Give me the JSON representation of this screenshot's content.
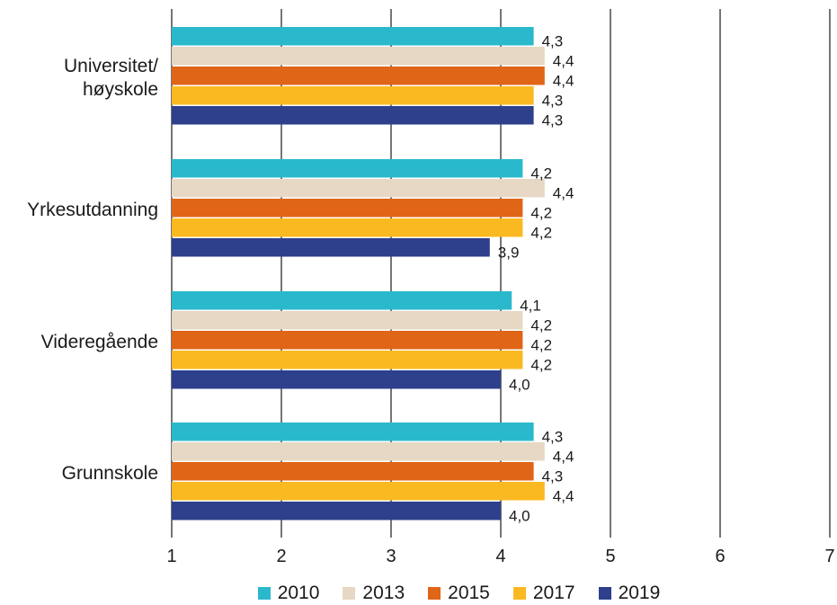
{
  "chart_data": {
    "type": "bar",
    "orientation": "horizontal",
    "categories": [
      "Universitet/\nhøyskole",
      "Yrkesutdanning",
      "Videregående",
      "Grunnskole"
    ],
    "series": [
      {
        "name": "2010",
        "color": "#2ab9cc",
        "values": [
          4.3,
          4.2,
          4.1,
          4.3
        ],
        "labels": [
          "4,3",
          "4,2",
          "4,1",
          "4,3"
        ]
      },
      {
        "name": "2013",
        "color": "#e6d8c4",
        "values": [
          4.4,
          4.4,
          4.2,
          4.4
        ],
        "labels": [
          "4,4",
          "4,4",
          "4,2",
          "4,4"
        ]
      },
      {
        "name": "2015",
        "color": "#e06517",
        "values": [
          4.4,
          4.2,
          4.2,
          4.3
        ],
        "labels": [
          "4,4",
          "4,2",
          "4,2",
          "4,3"
        ]
      },
      {
        "name": "2017",
        "color": "#fbb921",
        "values": [
          4.3,
          4.2,
          4.2,
          4.4
        ],
        "labels": [
          "4,3",
          "4,2",
          "4,2",
          "4,4"
        ]
      },
      {
        "name": "2019",
        "color": "#2e3f8c",
        "values": [
          4.3,
          3.9,
          4.0,
          4.0
        ],
        "labels": [
          "4,3",
          "3,9",
          "4,0",
          "4,0"
        ]
      }
    ],
    "xlim": [
      1,
      7
    ],
    "xticks": [
      "1",
      "2",
      "3",
      "4",
      "5",
      "6",
      "7"
    ],
    "grid": true,
    "legend_position": "bottom",
    "title": "",
    "xlabel": "",
    "ylabel": ""
  }
}
